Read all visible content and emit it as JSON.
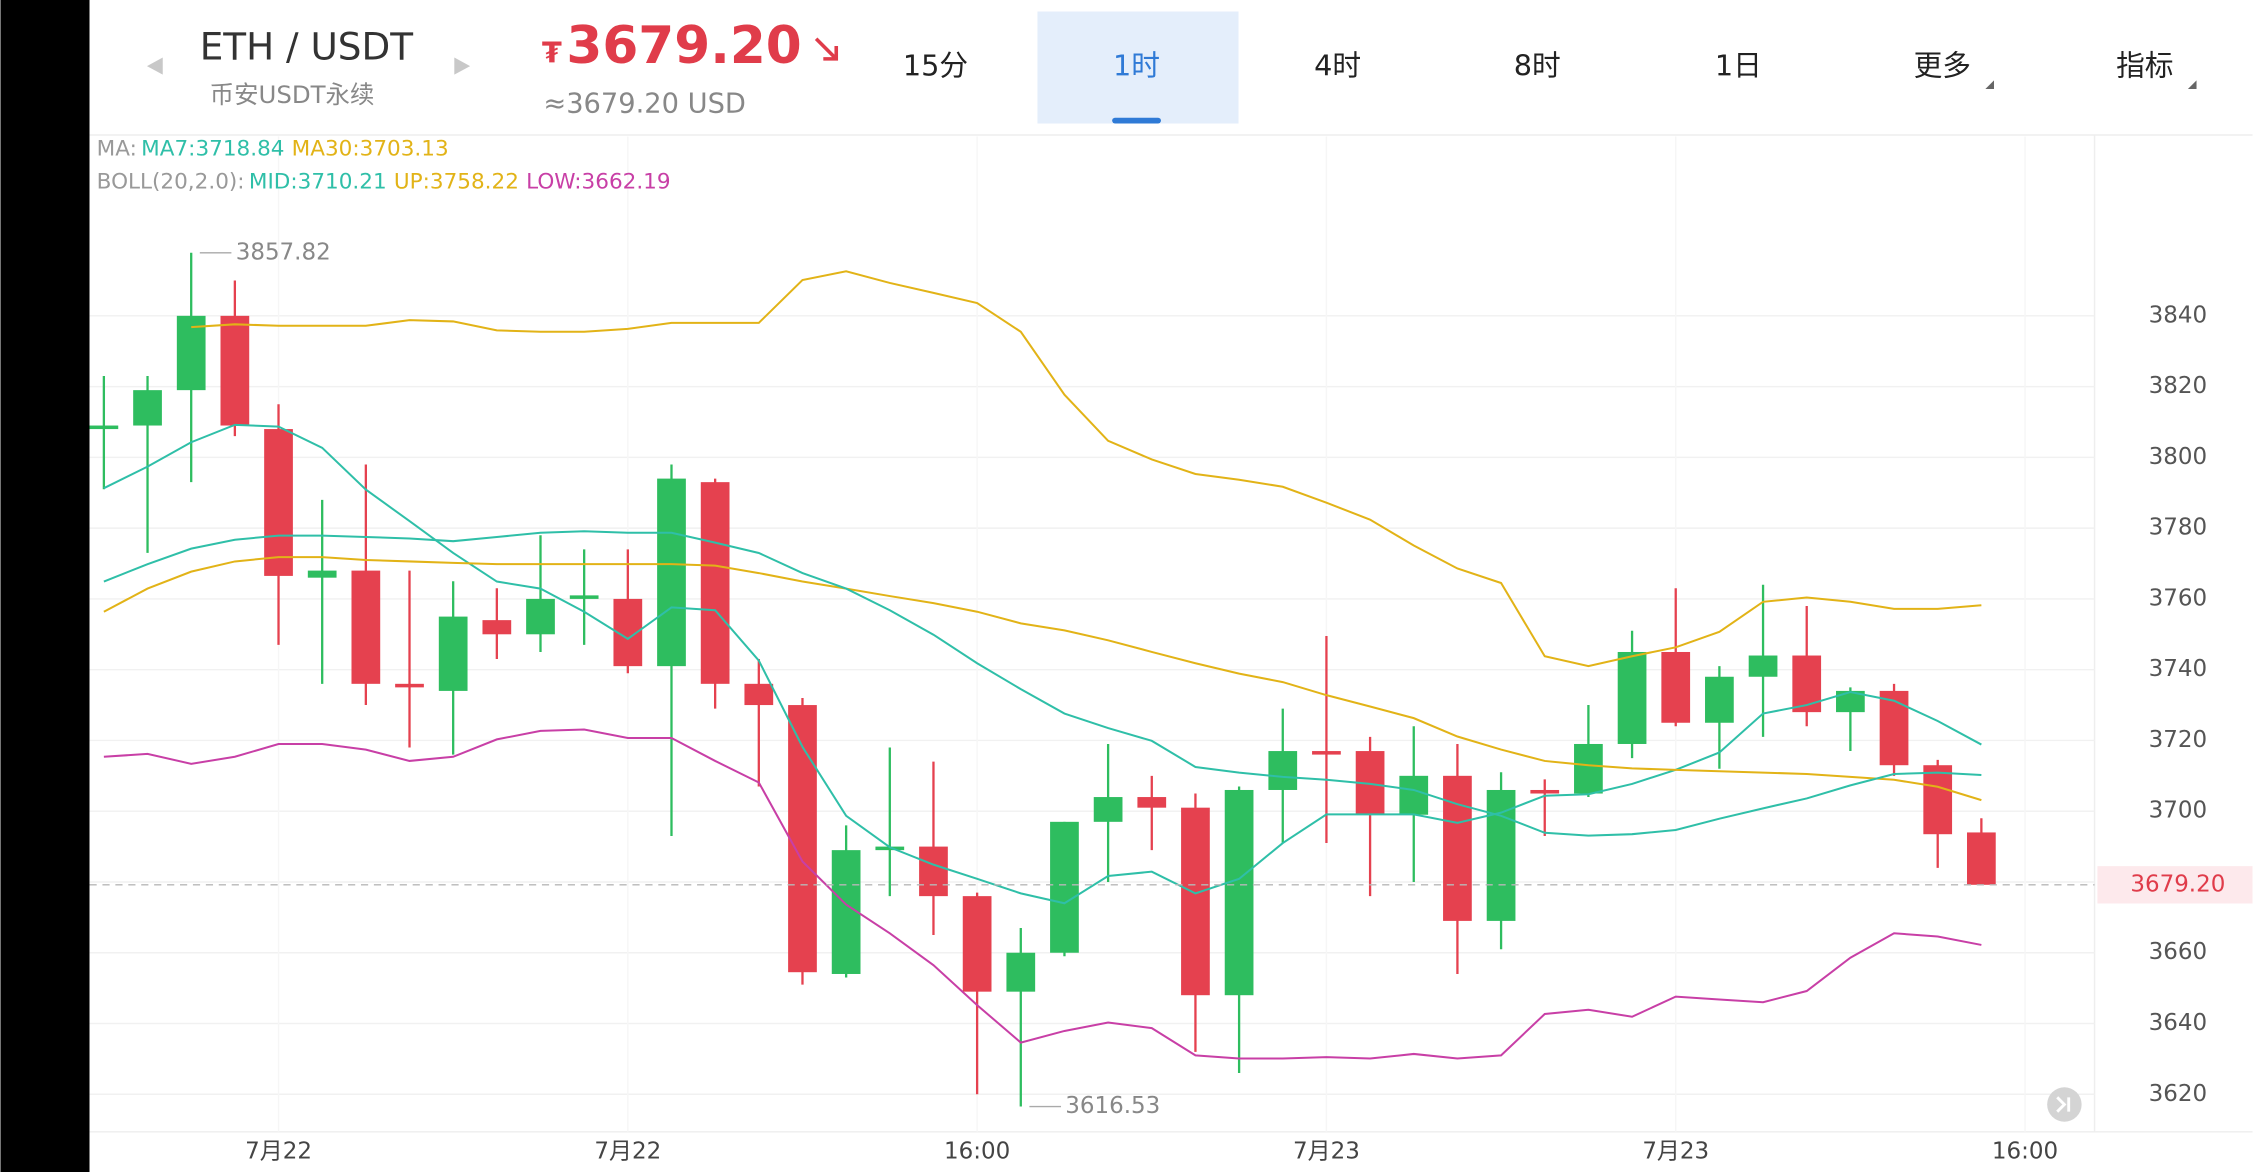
{
  "header": {
    "pair": "ETH / USDT",
    "market": "币安USDT永续",
    "price_symbol": "₮",
    "price": "3679.20",
    "price_usd": "≈3679.20 USD",
    "tabs": [
      {
        "label": "15分"
      },
      {
        "label": "1时",
        "active": true
      },
      {
        "label": "4时"
      },
      {
        "label": "8时"
      },
      {
        "label": "1日"
      },
      {
        "label": "更多"
      },
      {
        "label": "指标"
      }
    ]
  },
  "chart_data": {
    "type": "candlestick",
    "categories": [
      null,
      null,
      null,
      null,
      "7月22",
      null,
      null,
      null,
      null,
      null,
      null,
      null,
      "7月22",
      null,
      null,
      null,
      null,
      null,
      null,
      null,
      "16:00",
      null,
      null,
      null,
      null,
      null,
      null,
      null,
      "7月23",
      null,
      null,
      null,
      null,
      null,
      null,
      null,
      "7月23",
      null,
      null,
      null,
      null,
      null,
      null,
      null,
      "16:00"
    ],
    "open": [
      3808,
      3809,
      3819,
      3840,
      3808,
      3766,
      3768,
      3736,
      3734,
      3754,
      3750,
      3760,
      3760,
      3741,
      3793,
      3736,
      3730,
      3654,
      3689,
      3690,
      3676,
      3649,
      3660,
      3697,
      3704,
      3701,
      3648,
      3706,
      3717,
      3717,
      3699,
      3710,
      3669,
      3706,
      3705,
      3719,
      3745,
      3725,
      3738,
      3744,
      3728,
      3734,
      3713,
      3694,
      null
    ],
    "high": [
      3823,
      3823,
      3857.82,
      3850,
      3815,
      3788,
      3798,
      3768,
      3765,
      3763,
      3778,
      3774,
      3774,
      3798,
      3794,
      3743,
      3732,
      3696,
      3718,
      3714,
      3677,
      3667,
      3697,
      3719,
      3710,
      3705,
      3707,
      3729,
      3749.5,
      3721,
      3724,
      3719,
      3711,
      3709,
      3730,
      3751,
      3763,
      3741,
      3764,
      3758,
      3735,
      3736,
      3714.5,
      3698,
      null
    ],
    "low": [
      3791,
      3773,
      3793,
      3806,
      3747,
      3736,
      3730,
      3718,
      3716,
      3743,
      3745,
      3747,
      3739,
      3693,
      3729,
      3707,
      3651,
      3653,
      3676,
      3665,
      3620,
      3616.53,
      3659,
      3680,
      3689,
      3632,
      3626,
      3691,
      3691,
      3676,
      3680,
      3654,
      3661,
      3693,
      3704,
      3715,
      3724,
      3712,
      3721,
      3724,
      3717,
      3710,
      3684,
      3679.2,
      null
    ],
    "close": [
      3809,
      3819,
      3840,
      3809,
      3766.5,
      3768,
      3736,
      3735,
      3755,
      3750,
      3760,
      3761,
      3741,
      3794,
      3736,
      3730,
      3654.5,
      3689,
      3690,
      3676,
      3649,
      3660,
      3697,
      3704,
      3701,
      3648,
      3706,
      3717,
      3716,
      3699,
      3710,
      3669,
      3706,
      3705,
      3719,
      3745,
      3725,
      3738,
      3744,
      3728,
      3734,
      3713,
      3693.5,
      3679.2,
      null
    ],
    "up_color": "#2ebd5f",
    "down_color": "#e5414f",
    "indicators": [
      {
        "label": "MA:",
        "series": [
          {
            "name": "MA7:3718.84",
            "color": "#2fbfa8",
            "values": [
              3791.3,
              3797.4,
              3804.3,
              3809.2,
              3808.7,
              3802.7,
              3790.9,
              3782,
              3773,
              3764.9,
              3762.9,
              3756.4,
              3748.7,
              3757.6,
              3756.8,
              3742.6,
              3718.2,
              3698.7,
              3689.8,
              3684.9,
              3680.9,
              3676.8,
              3674,
              3681.7,
              3682.9,
              3676.8,
              3680.9,
              3691,
              3699.1,
              3699.1,
              3699.1,
              3696.7,
              3699.6,
              3704.4,
              3704.8,
              3707.7,
              3711.7,
              3716.6,
              3727.6,
              3730,
              3733.7,
              3731.2,
              3725.5,
              3718.84,
              null
            ]
          },
          {
            "name": "MA30:3703.13",
            "color": "#e2b317",
            "values": [
              3756.4,
              3762.9,
              3767.7,
              3770.6,
              3771.8,
              3771.8,
              3771,
              3770.6,
              3770.2,
              3769.8,
              3769.8,
              3769.8,
              3769.8,
              3769.8,
              3769.4,
              3767.3,
              3764.9,
              3762.9,
              3760.8,
              3758.8,
              3756.4,
              3753.1,
              3751.1,
              3748.3,
              3745,
              3741.8,
              3738.9,
              3736.5,
              3732.8,
              3729.6,
              3726.3,
              3721.1,
              3717.4,
              3714.2,
              3713,
              3712.1,
              3711.7,
              3711.3,
              3710.9,
              3710.5,
              3709.7,
              3708.9,
              3706.9,
              3703.13,
              null
            ]
          }
        ]
      },
      {
        "label": "BOLL(20,2.0):",
        "series": [
          {
            "name": "MID:3710.21",
            "color": "#2fbfa8",
            "values": [
              3764.9,
              3769.8,
              3774.2,
              3776.7,
              3777.9,
              3777.9,
              3777.5,
              3777.1,
              3776.3,
              3777.5,
              3778.7,
              3779.1,
              3778.7,
              3778.7,
              3775.9,
              3773,
              3767.3,
              3762.9,
              3756.8,
              3749.9,
              3741.8,
              3734.5,
              3727.6,
              3723.5,
              3719.9,
              3712.5,
              3710.9,
              3709.7,
              3708.9,
              3707.7,
              3706,
              3702,
              3698.7,
              3693.9,
              3693.1,
              3693.5,
              3694.7,
              3697.9,
              3700.8,
              3703.6,
              3707.3,
              3710.5,
              3710.9,
              3710.21,
              null
            ]
          },
          {
            "name": "UP:3758.22",
            "color": "#e2b317",
            "values": [
              null,
              null,
              3836.8,
              3837.6,
              3837.2,
              3837.2,
              3837.2,
              3838.8,
              3838.4,
              3835.9,
              3835.5,
              3835.5,
              3836.3,
              3838,
              3838,
              3838,
              3850.1,
              3852.6,
              3849.3,
              3846.5,
              3843.6,
              3835.5,
              3817.7,
              3804.7,
              3799.4,
              3795.3,
              3793.7,
              3791.7,
              3787.2,
              3782.4,
              3775.1,
              3768.6,
              3764.5,
              3743.8,
              3741,
              3743.8,
              3746.3,
              3750.7,
              3759.2,
              3760.4,
              3759.2,
              3757.2,
              3757.2,
              3758.22,
              null
            ]
          },
          {
            "name": "LOW:3662.19",
            "color": "#c83fa6",
            "values": [
              3715.4,
              3716.2,
              3713.4,
              3715.4,
              3719,
              3719,
              3717.4,
              3714.2,
              3715.4,
              3720.3,
              3722.7,
              3723.1,
              3720.7,
              3720.7,
              3714.2,
              3708.1,
              3685.8,
              3673.6,
              3665.5,
              3656.5,
              3645.2,
              3634.6,
              3637.9,
              3640.3,
              3638.7,
              3631,
              3630.1,
              3630.1,
              3630.5,
              3630.1,
              3631.4,
              3630.1,
              3631,
              3642.7,
              3643.9,
              3641.9,
              3647.6,
              3646.8,
              3646,
              3649.2,
              3658.6,
              3665.5,
              3664.6,
              3662.19,
              null
            ]
          }
        ]
      }
    ],
    "ylim": [
      3609.4,
      3890.7
    ],
    "yticks": [
      3620,
      3640,
      3660,
      3680,
      3700,
      3720,
      3740,
      3760,
      3780,
      3800,
      3820,
      3840
    ],
    "grid": true,
    "last_price": {
      "value": 3679.2,
      "label": "3679.20"
    }
  }
}
